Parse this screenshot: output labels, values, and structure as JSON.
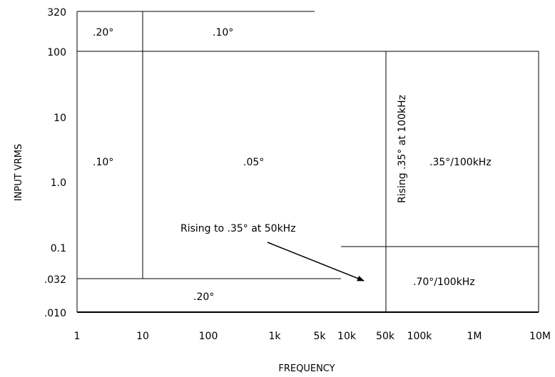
{
  "axes": {
    "x_title": "FREQUENCY",
    "y_title": "INPUT VRMS",
    "y_ticks": [
      "320",
      "100",
      "10",
      "1.0",
      "0.1",
      ".032",
      ".010"
    ],
    "x_ticks": [
      "1",
      "10",
      "100",
      "1k",
      "5k",
      "10k",
      "50k",
      "100k",
      "1M",
      "10M"
    ]
  },
  "regions": {
    "top_left": ".20°",
    "top_mid": ".10°",
    "left_mid": ".10°",
    "center": ".05°",
    "right": ".35°/100kHz",
    "bottom_right": ".70°/100kHz",
    "bottom": ".20°"
  },
  "annotations": {
    "vertical_note": "Rising .35° at 100kHz",
    "arrow_note": "Rising to .35° at 50kHz"
  },
  "colors": {
    "line": "#000000",
    "background": "#ffffff"
  }
}
